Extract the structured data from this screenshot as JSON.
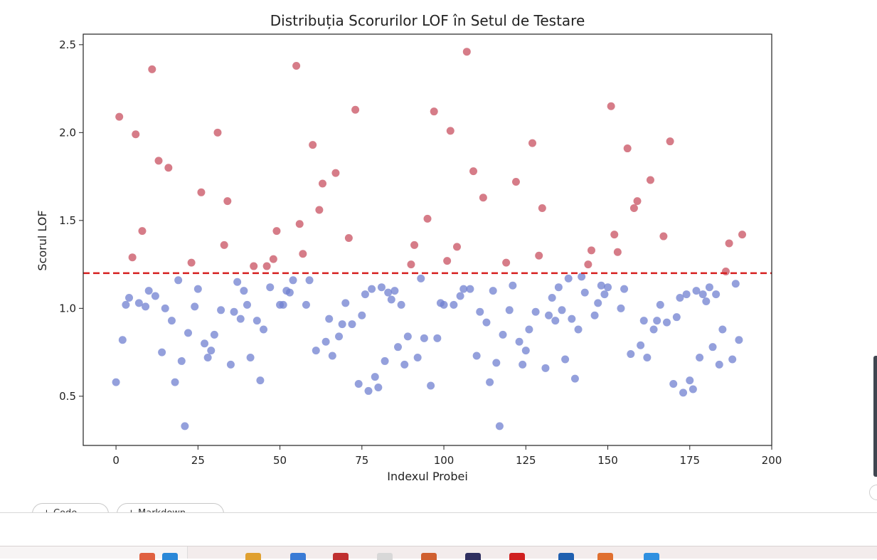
{
  "chart_data": {
    "type": "scatter",
    "title": "Distribuția Scorurilor LOF în Setul de Testare",
    "xlabel": "Indexul Probei",
    "ylabel": "Scorul LOF",
    "xlim": [
      -10,
      200
    ],
    "ylim": [
      0.22,
      2.56
    ],
    "xticks": [
      0,
      25,
      50,
      75,
      100,
      125,
      150,
      175,
      200
    ],
    "yticks": [
      0.5,
      1.0,
      1.5,
      2.0,
      2.5
    ],
    "xtick_labels": [
      "0",
      "25",
      "50",
      "75",
      "100",
      "125",
      "150",
      "175",
      "200"
    ],
    "ytick_labels": [
      "0.5",
      "1.0",
      "1.5",
      "2.0",
      "2.5"
    ],
    "threshold": 1.2,
    "grid": false,
    "series": [
      {
        "color": "#7080d0",
        "points": [
          [
            0,
            0.58
          ],
          [
            2,
            0.82
          ],
          [
            3,
            1.02
          ],
          [
            4,
            1.06
          ],
          [
            7,
            1.03
          ],
          [
            9,
            1.01
          ],
          [
            10,
            1.1
          ],
          [
            12,
            1.07
          ],
          [
            14,
            0.75
          ],
          [
            15,
            1.0
          ],
          [
            17,
            0.93
          ],
          [
            18,
            0.58
          ],
          [
            19,
            1.16
          ],
          [
            20,
            0.7
          ],
          [
            21,
            0.33
          ],
          [
            22,
            0.86
          ],
          [
            24,
            1.01
          ],
          [
            25,
            1.11
          ],
          [
            27,
            0.8
          ],
          [
            28,
            0.72
          ],
          [
            29,
            0.76
          ],
          [
            30,
            0.85
          ],
          [
            32,
            0.99
          ],
          [
            35,
            0.68
          ],
          [
            36,
            0.98
          ],
          [
            37,
            1.15
          ],
          [
            38,
            0.94
          ],
          [
            39,
            1.1
          ],
          [
            40,
            1.02
          ],
          [
            41,
            0.72
          ],
          [
            43,
            0.93
          ],
          [
            44,
            0.59
          ],
          [
            45,
            0.88
          ],
          [
            47,
            1.12
          ],
          [
            50,
            1.02
          ],
          [
            51,
            1.02
          ],
          [
            52,
            1.1
          ],
          [
            53,
            1.09
          ],
          [
            54,
            1.16
          ],
          [
            58,
            1.02
          ],
          [
            59,
            1.16
          ],
          [
            61,
            0.76
          ],
          [
            64,
            0.81
          ],
          [
            65,
            0.94
          ],
          [
            66,
            0.73
          ],
          [
            68,
            0.84
          ],
          [
            69,
            0.91
          ],
          [
            70,
            1.03
          ],
          [
            72,
            0.91
          ],
          [
            74,
            0.57
          ],
          [
            75,
            0.96
          ],
          [
            76,
            1.08
          ],
          [
            77,
            0.53
          ],
          [
            78,
            1.11
          ],
          [
            79,
            0.61
          ],
          [
            80,
            0.55
          ],
          [
            81,
            1.12
          ],
          [
            82,
            0.7
          ],
          [
            83,
            1.09
          ],
          [
            84,
            1.05
          ],
          [
            85,
            1.1
          ],
          [
            86,
            0.78
          ],
          [
            87,
            1.02
          ],
          [
            88,
            0.68
          ],
          [
            89,
            0.84
          ],
          [
            92,
            0.72
          ],
          [
            93,
            1.17
          ],
          [
            94,
            0.83
          ],
          [
            96,
            0.56
          ],
          [
            98,
            0.83
          ],
          [
            99,
            1.03
          ],
          [
            100,
            1.02
          ],
          [
            103,
            1.02
          ],
          [
            105,
            1.07
          ],
          [
            106,
            1.11
          ],
          [
            108,
            1.11
          ],
          [
            110,
            0.73
          ],
          [
            111,
            0.98
          ],
          [
            113,
            0.92
          ],
          [
            114,
            0.58
          ],
          [
            115,
            1.1
          ],
          [
            116,
            0.69
          ],
          [
            117,
            0.33
          ],
          [
            118,
            0.85
          ],
          [
            120,
            0.99
          ],
          [
            121,
            1.13
          ],
          [
            123,
            0.81
          ],
          [
            124,
            0.68
          ],
          [
            125,
            0.76
          ],
          [
            126,
            0.88
          ],
          [
            128,
            0.98
          ],
          [
            131,
            0.66
          ],
          [
            132,
            0.96
          ],
          [
            133,
            1.06
          ],
          [
            134,
            0.93
          ],
          [
            135,
            1.12
          ],
          [
            136,
            0.99
          ],
          [
            137,
            0.71
          ],
          [
            138,
            1.17
          ],
          [
            139,
            0.94
          ],
          [
            140,
            0.6
          ],
          [
            141,
            0.88
          ],
          [
            142,
            1.18
          ],
          [
            143,
            1.09
          ],
          [
            146,
            0.96
          ],
          [
            147,
            1.03
          ],
          [
            148,
            1.13
          ],
          [
            149,
            1.08
          ],
          [
            150,
            1.12
          ],
          [
            154,
            1.0
          ],
          [
            155,
            1.11
          ],
          [
            157,
            0.74
          ],
          [
            160,
            0.79
          ],
          [
            161,
            0.93
          ],
          [
            162,
            0.72
          ],
          [
            164,
            0.88
          ],
          [
            165,
            0.93
          ],
          [
            166,
            1.02
          ],
          [
            168,
            0.92
          ],
          [
            170,
            0.57
          ],
          [
            171,
            0.95
          ],
          [
            172,
            1.06
          ],
          [
            173,
            0.52
          ],
          [
            174,
            1.08
          ],
          [
            175,
            0.59
          ],
          [
            176,
            0.54
          ],
          [
            177,
            1.1
          ],
          [
            178,
            0.72
          ],
          [
            179,
            1.08
          ],
          [
            180,
            1.04
          ],
          [
            181,
            1.12
          ],
          [
            182,
            0.78
          ],
          [
            183,
            1.08
          ],
          [
            184,
            0.68
          ],
          [
            185,
            0.88
          ],
          [
            188,
            0.71
          ],
          [
            189,
            1.14
          ],
          [
            190,
            0.82
          ]
        ]
      },
      {
        "color": "#c85060",
        "points": [
          [
            1,
            2.09
          ],
          [
            5,
            1.29
          ],
          [
            6,
            1.99
          ],
          [
            8,
            1.44
          ],
          [
            11,
            2.36
          ],
          [
            13,
            1.84
          ],
          [
            16,
            1.8
          ],
          [
            23,
            1.26
          ],
          [
            26,
            1.66
          ],
          [
            31,
            2.0
          ],
          [
            33,
            1.36
          ],
          [
            34,
            1.61
          ],
          [
            42,
            1.24
          ],
          [
            46,
            1.24
          ],
          [
            48,
            1.28
          ],
          [
            49,
            1.44
          ],
          [
            55,
            2.38
          ],
          [
            56,
            1.48
          ],
          [
            57,
            1.31
          ],
          [
            60,
            1.93
          ],
          [
            62,
            1.56
          ],
          [
            63,
            1.71
          ],
          [
            67,
            1.77
          ],
          [
            71,
            1.4
          ],
          [
            73,
            2.13
          ],
          [
            90,
            1.25
          ],
          [
            91,
            1.36
          ],
          [
            95,
            1.51
          ],
          [
            97,
            2.12
          ],
          [
            101,
            1.27
          ],
          [
            102,
            2.01
          ],
          [
            104,
            1.35
          ],
          [
            107,
            2.46
          ],
          [
            109,
            1.78
          ],
          [
            112,
            1.63
          ],
          [
            119,
            1.26
          ],
          [
            122,
            1.72
          ],
          [
            127,
            1.94
          ],
          [
            129,
            1.3
          ],
          [
            130,
            1.57
          ],
          [
            144,
            1.25
          ],
          [
            145,
            1.33
          ],
          [
            151,
            2.15
          ],
          [
            152,
            1.42
          ],
          [
            153,
            1.32
          ],
          [
            156,
            1.91
          ],
          [
            158,
            1.57
          ],
          [
            159,
            1.61
          ],
          [
            163,
            1.73
          ],
          [
            167,
            1.41
          ],
          [
            169,
            1.95
          ],
          [
            186,
            1.21
          ],
          [
            187,
            1.37
          ],
          [
            191,
            1.42
          ]
        ]
      }
    ]
  },
  "controls": {
    "pill_1": "+ Code",
    "pill_2": "+ Markdown"
  },
  "taskbar": {
    "icons": [
      {
        "name": "pencil-icon",
        "color": "#e06040"
      },
      {
        "name": "edge-icon",
        "color": "#2a88d8"
      },
      {
        "name": "files-icon",
        "color": "#e0a030"
      },
      {
        "name": "store-icon",
        "color": "#3a7bd5"
      },
      {
        "name": "gmail-icon",
        "color": "#c03030"
      },
      {
        "name": "chrome-icon",
        "color": "#d8d8d8"
      },
      {
        "name": "powerpoint-icon",
        "color": "#d06030"
      },
      {
        "name": "browser-icon",
        "color": "#303060"
      },
      {
        "name": "record-icon",
        "color": "#d02020"
      },
      {
        "name": "word-icon",
        "color": "#2060b0"
      },
      {
        "name": "firefox-icon",
        "color": "#e07030"
      },
      {
        "name": "app-icon",
        "color": "#3090e0"
      }
    ]
  }
}
